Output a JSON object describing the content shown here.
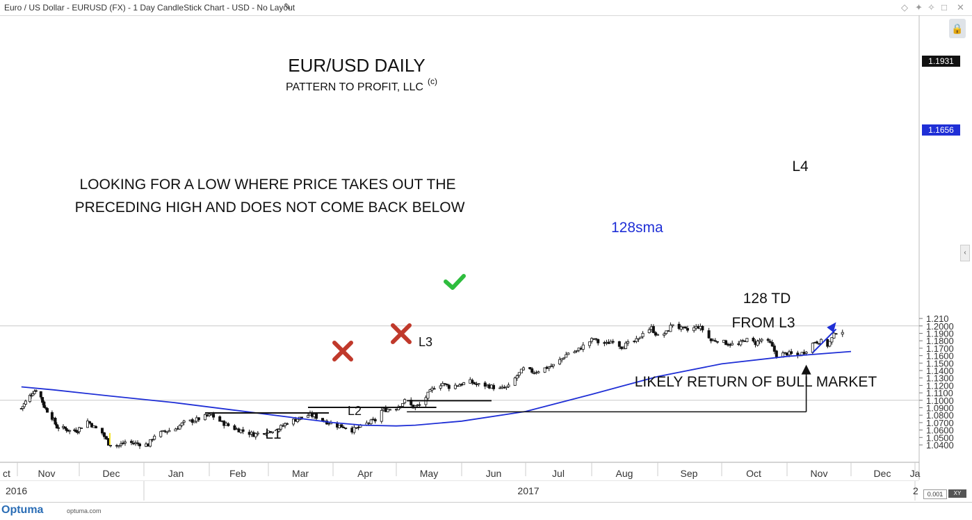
{
  "window": {
    "title": "Euro / US Dollar - EURUSD (FX) - 1 Day CandleStick Chart - USD - No Layout",
    "edit_icon": "pencil-icon",
    "toolbar_icons": [
      "diamond-icon",
      "pin-icon",
      "pin-icon",
      "maximize-icon",
      "close-icon"
    ],
    "lock_icon": "lock-icon",
    "collapse_icon": "chevron-left-icon"
  },
  "footer": {
    "brand": "Optuma",
    "site": "optuma.com",
    "zoom_value": "0.001",
    "xy_label": "XY"
  },
  "chart_data": {
    "type": "candlestick",
    "title": "EUR/USD DAILY",
    "subtitle": "PATTERN TO PROFIT, LLC",
    "subtitle_mark": "(c)",
    "y_range": [
      1.034,
      1.211
    ],
    "y_ticks": [
      1.04,
      1.05,
      1.06,
      1.07,
      1.08,
      1.09,
      1.1,
      1.11,
      1.12,
      1.13,
      1.14,
      1.15,
      1.16,
      1.17,
      1.18,
      1.19,
      1.2,
      1.21
    ],
    "y_tick_labels": [
      "1.0400",
      "1.0500",
      "1.0600",
      "1.0700",
      "1.0800",
      "1.0900",
      "1.1000",
      "1.1100",
      "1.1200",
      "1.1300",
      "1.1400",
      "1.1500",
      "1.1600",
      "1.1700",
      "1.1800",
      "1.1900",
      "1.2000",
      "1.210"
    ],
    "x_months": [
      "ct",
      "Nov",
      "Dec",
      "Jan",
      "Feb",
      "Mar",
      "Apr",
      "May",
      "Jun",
      "Jul",
      "Aug",
      "Sep",
      "Oct",
      "Nov",
      "Dec",
      "Ja"
    ],
    "x_years": [
      "2016",
      "2017",
      "2"
    ],
    "last_price": "1.1931",
    "sma_value": "1.1656",
    "price_path": [
      [
        "2016-10-25",
        1.089
      ],
      [
        "2016-10-28",
        1.098
      ],
      [
        "2016-11-02",
        1.111
      ],
      [
        "2016-11-04",
        1.114
      ],
      [
        "2016-11-07",
        1.104
      ],
      [
        "2016-11-09",
        1.092
      ],
      [
        "2016-11-11",
        1.086
      ],
      [
        "2016-11-14",
        1.077
      ],
      [
        "2016-11-17",
        1.064
      ],
      [
        "2016-11-22",
        1.062
      ],
      [
        "2016-11-25",
        1.059
      ],
      [
        "2016-11-30",
        1.06
      ],
      [
        "2016-12-05",
        1.072
      ],
      [
        "2016-12-08",
        1.064
      ],
      [
        "2016-12-12",
        1.056
      ],
      [
        "2016-12-15",
        1.042
      ],
      [
        "2016-12-20",
        1.039
      ],
      [
        "2016-12-23",
        1.044
      ],
      [
        "2016-12-28",
        1.042
      ],
      [
        "2017-01-03",
        1.04
      ],
      [
        "2017-01-06",
        1.053
      ],
      [
        "2017-01-11",
        1.058
      ],
      [
        "2017-01-16",
        1.062
      ],
      [
        "2017-01-20",
        1.07
      ],
      [
        "2017-01-25",
        1.073
      ],
      [
        "2017-01-30",
        1.078
      ],
      [
        "2017-02-02",
        1.08
      ],
      [
        "2017-02-07",
        1.07
      ],
      [
        "2017-02-13",
        1.062
      ],
      [
        "2017-02-20",
        1.056
      ],
      [
        "2017-02-22",
        1.054
      ],
      [
        "2017-02-28",
        1.058
      ],
      [
        "2017-03-06",
        1.062
      ],
      [
        "2017-03-10",
        1.07
      ],
      [
        "2017-03-15",
        1.075
      ],
      [
        "2017-03-20",
        1.08
      ],
      [
        "2017-03-23",
        1.079
      ],
      [
        "2017-03-28",
        1.072
      ],
      [
        "2017-04-03",
        1.066
      ],
      [
        "2017-04-07",
        1.064
      ],
      [
        "2017-04-10",
        1.06
      ],
      [
        "2017-04-13",
        1.063
      ],
      [
        "2017-04-18",
        1.07
      ],
      [
        "2017-04-21",
        1.073
      ],
      [
        "2017-04-24",
        1.086
      ],
      [
        "2017-04-27",
        1.088
      ],
      [
        "2017-05-01",
        1.09
      ],
      [
        "2017-05-05",
        1.099
      ],
      [
        "2017-05-09",
        1.091
      ],
      [
        "2017-05-12",
        1.093
      ],
      [
        "2017-05-16",
        1.108
      ],
      [
        "2017-05-19",
        1.118
      ],
      [
        "2017-05-23",
        1.123
      ],
      [
        "2017-05-26",
        1.118
      ],
      [
        "2017-06-01",
        1.122
      ],
      [
        "2017-06-05",
        1.125
      ],
      [
        "2017-06-08",
        1.121
      ],
      [
        "2017-06-13",
        1.12
      ],
      [
        "2017-06-19",
        1.115
      ],
      [
        "2017-06-23",
        1.118
      ],
      [
        "2017-06-27",
        1.133
      ],
      [
        "2017-06-30",
        1.142
      ],
      [
        "2017-07-05",
        1.138
      ],
      [
        "2017-07-10",
        1.143
      ],
      [
        "2017-07-14",
        1.147
      ],
      [
        "2017-07-18",
        1.156
      ],
      [
        "2017-07-21",
        1.164
      ],
      [
        "2017-07-25",
        1.166
      ],
      [
        "2017-07-28",
        1.173
      ],
      [
        "2017-08-02",
        1.183
      ],
      [
        "2017-08-04",
        1.178
      ],
      [
        "2017-08-08",
        1.176
      ],
      [
        "2017-08-11",
        1.181
      ],
      [
        "2017-08-15",
        1.172
      ],
      [
        "2017-08-18",
        1.176
      ],
      [
        "2017-08-23",
        1.181
      ],
      [
        "2017-08-25",
        1.192
      ],
      [
        "2017-08-29",
        1.197
      ],
      [
        "2017-09-01",
        1.186
      ],
      [
        "2017-09-05",
        1.191
      ],
      [
        "2017-09-08",
        1.203
      ],
      [
        "2017-09-12",
        1.196
      ],
      [
        "2017-09-15",
        1.194
      ],
      [
        "2017-09-20",
        1.199
      ],
      [
        "2017-09-22",
        1.195
      ],
      [
        "2017-09-26",
        1.18
      ],
      [
        "2017-09-29",
        1.181
      ],
      [
        "2017-10-04",
        1.176
      ],
      [
        "2017-10-09",
        1.174
      ],
      [
        "2017-10-12",
        1.182
      ],
      [
        "2017-10-17",
        1.177
      ],
      [
        "2017-10-20",
        1.182
      ],
      [
        "2017-10-24",
        1.176
      ],
      [
        "2017-10-27",
        1.161
      ],
      [
        "2017-11-01",
        1.163
      ],
      [
        "2017-11-06",
        1.16
      ],
      [
        "2017-11-09",
        1.165
      ],
      [
        "2017-11-14",
        1.179
      ],
      [
        "2017-11-17",
        1.179
      ],
      [
        "2017-11-20",
        1.174
      ],
      [
        "2017-11-24",
        1.192
      ],
      [
        "2017-11-27",
        1.1931
      ]
    ],
    "sma_path": [
      [
        "2016-10-25",
        1.118
      ],
      [
        "2016-11-15",
        1.114
      ],
      [
        "2016-12-15",
        1.106
      ],
      [
        "2017-01-15",
        1.097
      ],
      [
        "2017-02-15",
        1.086
      ],
      [
        "2017-03-15",
        1.076
      ],
      [
        "2017-04-01",
        1.07
      ],
      [
        "2017-04-15",
        1.0665
      ],
      [
        "2017-05-01",
        1.0655
      ],
      [
        "2017-05-10",
        1.0665
      ],
      [
        "2017-06-01",
        1.072
      ],
      [
        "2017-07-01",
        1.085
      ],
      [
        "2017-08-01",
        1.108
      ],
      [
        "2017-09-01",
        1.132
      ],
      [
        "2017-10-01",
        1.149
      ],
      [
        "2017-11-01",
        1.159
      ],
      [
        "2017-12-01",
        1.1656
      ]
    ],
    "horizontal_lines": [
      {
        "from": "2017-01-30",
        "to": "2017-03-30",
        "y": 1.083
      },
      {
        "from": "2017-03-20",
        "to": "2017-05-20",
        "y": 1.0905
      },
      {
        "from": "2017-05-06",
        "to": "2017-06-15",
        "y": 1.0995
      }
    ],
    "l3_line": {
      "from": "2017-05-06",
      "to": "2017-11-10",
      "y": 1.0845,
      "to_y": 1.146
    },
    "trend_arrow": {
      "from": [
        "2017-11-13",
        1.164
      ],
      "to": [
        "2017-11-24",
        1.205
      ]
    },
    "annotations": {
      "pattern_text_1": "LOOKING FOR A LOW WHERE PRICE TAKES OUT THE",
      "pattern_text_2": "PRECEDING HIGH AND DOES NOT COME BACK BELOW",
      "sma_label": "128sma",
      "td_text_1": "128 TD",
      "td_text_2": "FROM L3",
      "bull_text": "LIKELY RETURN OF BULL MARKET",
      "low_labels": [
        "L1",
        "L2",
        "L3",
        "L4"
      ]
    }
  }
}
